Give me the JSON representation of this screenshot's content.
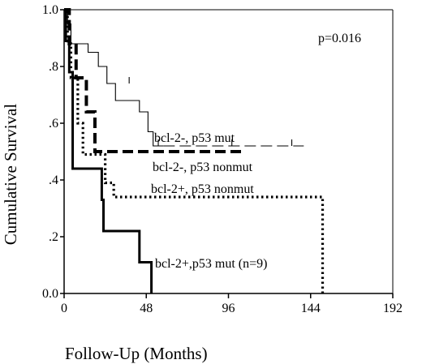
{
  "chart_data": {
    "type": "line",
    "subtype": "kaplan-meier step plot",
    "title": "",
    "xlabel": "Follow-Up (Months)",
    "ylabel": "Cumulative Survival",
    "xlim": [
      0,
      192
    ],
    "ylim": [
      0,
      1
    ],
    "x_ticks": [
      0,
      48,
      96,
      144,
      192
    ],
    "x_tick_labels": [
      "0",
      "48",
      "96",
      "144",
      "192"
    ],
    "y_ticks": [
      0,
      0.2,
      0.4,
      0.6,
      0.8,
      1.0
    ],
    "y_tick_labels": [
      "0.0",
      ".2",
      ".4",
      ".6",
      ".8",
      "1.0"
    ],
    "grid": false,
    "legend": "none (series labelled directly on plot)",
    "annotation": "p=0.016",
    "series": [
      {
        "name": "bcl-2-, p53 mut",
        "line_style": "thin solid, dashed tail",
        "steps": [
          [
            0,
            1.0
          ],
          [
            2,
            0.95
          ],
          [
            4,
            0.88
          ],
          [
            14,
            0.85
          ],
          [
            20,
            0.8
          ],
          [
            25,
            0.74
          ],
          [
            30,
            0.68
          ],
          [
            44,
            0.64
          ],
          [
            49,
            0.57
          ],
          [
            52,
            0.52
          ],
          [
            140,
            0.52
          ]
        ],
        "censor_marks": [
          [
            38,
            0.74
          ],
          [
            55,
            0.52
          ],
          [
            98,
            0.52
          ],
          [
            133,
            0.52
          ]
        ]
      },
      {
        "name": "bcl-2-, p53 nonmut",
        "line_style": "thick dashed",
        "steps": [
          [
            0,
            1.0
          ],
          [
            3,
            0.88
          ],
          [
            7,
            0.76
          ],
          [
            13,
            0.64
          ],
          [
            18,
            0.5
          ],
          [
            105,
            0.5
          ]
        ]
      },
      {
        "name": "bcl-2+, p53 nonmut",
        "line_style": "dotted",
        "steps": [
          [
            0,
            1.0
          ],
          [
            2,
            0.88
          ],
          [
            4,
            0.76
          ],
          [
            8,
            0.6
          ],
          [
            11,
            0.49
          ],
          [
            24,
            0.39
          ],
          [
            29,
            0.34
          ],
          [
            151,
            0.34
          ],
          [
            151,
            0.0
          ]
        ]
      },
      {
        "name": "bcl-2+,p53 mut (n=9)",
        "line_style": "thick solid",
        "steps": [
          [
            0,
            1.0
          ],
          [
            1,
            0.89
          ],
          [
            3,
            0.78
          ],
          [
            5,
            0.44
          ],
          [
            22,
            0.33
          ],
          [
            23,
            0.22
          ],
          [
            44,
            0.11
          ],
          [
            51,
            0.0
          ]
        ]
      }
    ]
  }
}
